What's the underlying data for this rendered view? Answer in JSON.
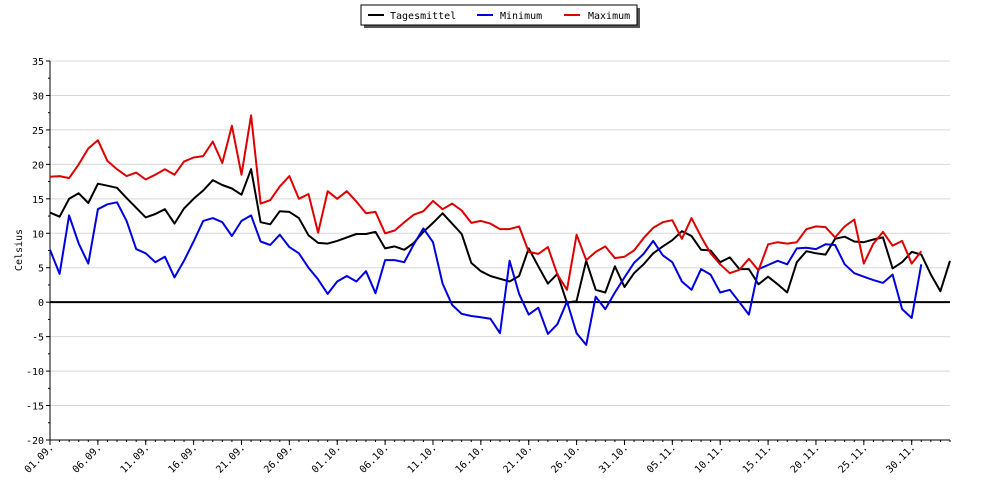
{
  "chart_data": {
    "type": "line",
    "ylabel": "Celsius",
    "xlabel": "",
    "ylim": [
      -20,
      35
    ],
    "yticks": [
      35,
      30,
      25,
      20,
      15,
      10,
      5,
      0,
      -5,
      -10,
      -15,
      -20
    ],
    "grid": true,
    "legend_position": "top-center",
    "x_start_date": "01.09.",
    "x_tick_labels": [
      "01.09.",
      "06.09.",
      "11.09.",
      "16.09.",
      "21.09.",
      "26.09.",
      "01.10.",
      "06.10.",
      "11.10.",
      "16.10.",
      "21.10.",
      "26.10.",
      "31.10.",
      "05.11.",
      "10.11.",
      "15.11.",
      "20.11.",
      "25.11.",
      "30.11."
    ],
    "x_tick_day_index": [
      0,
      5,
      10,
      15,
      20,
      25,
      30,
      35,
      40,
      45,
      50,
      55,
      60,
      65,
      70,
      75,
      80,
      85,
      90
    ],
    "series": [
      {
        "name": "Tagesmittel",
        "color": "#000000",
        "values": [
          13.0,
          12.4,
          15.0,
          15.8,
          14.4,
          17.2,
          16.9,
          16.6,
          15.1,
          13.7,
          12.3,
          12.8,
          13.5,
          11.4,
          13.6,
          15.0,
          16.2,
          17.7,
          17.0,
          16.5,
          15.6,
          19.3,
          11.6,
          11.3,
          13.2,
          13.1,
          12.2,
          9.7,
          8.6,
          8.5,
          8.9,
          9.4,
          9.9,
          9.9,
          10.2,
          7.8,
          8.1,
          7.6,
          8.6,
          10.2,
          11.5,
          12.9,
          11.4,
          9.9,
          5.7,
          4.5,
          3.8,
          3.4,
          3.0,
          3.8,
          7.8,
          5.2,
          2.7,
          4.1,
          -0.1,
          0.2,
          6.0,
          1.8,
          1.4,
          5.2,
          2.2,
          4.2,
          5.5,
          7.1,
          8.1,
          9.0,
          10.3,
          9.6,
          7.6,
          7.5,
          5.8,
          6.5,
          4.8,
          4.8,
          2.6,
          3.7,
          2.6,
          1.4,
          5.8,
          7.4,
          7.1,
          6.9,
          9.2,
          9.5,
          8.8,
          8.7,
          9.1,
          9.4,
          4.9,
          5.8,
          7.3,
          6.9,
          4.0,
          1.6,
          6.0
        ]
      },
      {
        "name": "Minimum",
        "color": "#0000dd",
        "values": [
          7.6,
          4.1,
          12.6,
          8.5,
          5.6,
          13.5,
          14.2,
          14.5,
          11.8,
          7.7,
          7.1,
          5.8,
          6.6,
          3.6,
          6.0,
          8.8,
          11.8,
          12.2,
          11.6,
          9.6,
          11.8,
          12.6,
          8.8,
          8.3,
          9.8,
          8.0,
          7.1,
          5.0,
          3.3,
          1.2,
          3.0,
          3.8,
          3.0,
          4.5,
          1.3,
          6.1,
          6.1,
          5.8,
          8.4,
          10.7,
          8.7,
          2.7,
          -0.4,
          -1.7,
          -2.0,
          -2.2,
          -2.4,
          -4.5,
          6.0,
          1.2,
          -1.8,
          -0.8,
          -4.6,
          -3.2,
          0.1,
          -4.5,
          -6.2,
          0.8,
          -1.0,
          1.4,
          3.6,
          5.7,
          7.0,
          8.9,
          6.8,
          5.8,
          3.0,
          1.8,
          4.8,
          4.0,
          1.4,
          1.8,
          0.0,
          -1.8,
          4.8,
          5.4,
          6.0,
          5.5,
          7.8,
          7.9,
          7.7,
          8.4,
          8.3,
          5.5,
          4.2,
          3.7,
          3.2,
          2.8,
          4.0,
          -1.0,
          -2.3,
          5.5
        ]
      },
      {
        "name": "Maximum",
        "color": "#dd0000",
        "values": [
          18.2,
          18.3,
          18.0,
          20.0,
          22.3,
          23.5,
          20.5,
          19.3,
          18.3,
          18.8,
          17.8,
          18.5,
          19.3,
          18.5,
          20.4,
          21.0,
          21.2,
          23.3,
          20.2,
          25.6,
          18.5,
          27.1,
          14.3,
          14.8,
          16.8,
          18.3,
          15.0,
          15.7,
          10.1,
          16.1,
          15.0,
          16.1,
          14.6,
          12.9,
          13.1,
          10.0,
          10.4,
          11.6,
          12.7,
          13.2,
          14.7,
          13.5,
          14.3,
          13.3,
          11.5,
          11.8,
          11.4,
          10.6,
          10.6,
          11.0,
          7.3,
          7.0,
          8.0,
          4.0,
          1.8,
          9.8,
          6.1,
          7.3,
          8.1,
          6.4,
          6.6,
          7.5,
          9.3,
          10.8,
          11.6,
          11.9,
          9.2,
          12.2,
          9.5,
          7.1,
          5.5,
          4.2,
          4.7,
          6.3,
          4.6,
          8.4,
          8.7,
          8.5,
          8.7,
          10.6,
          11.0,
          10.9,
          9.4,
          11.0,
          12.0,
          5.6,
          8.5,
          10.2,
          8.2,
          8.9,
          5.6,
          7.4
        ]
      }
    ]
  }
}
